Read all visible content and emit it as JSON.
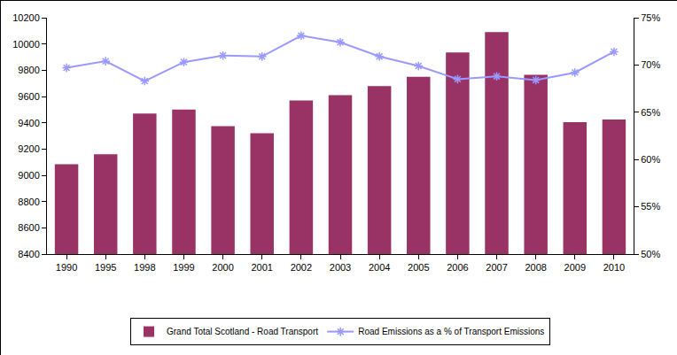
{
  "chart_data": {
    "type": "bar",
    "categories": [
      "1990",
      "1995",
      "1998",
      "1999",
      "2000",
      "2001",
      "2002",
      "2003",
      "2004",
      "2005",
      "2006",
      "2007",
      "2008",
      "2009",
      "2010"
    ],
    "series": [
      {
        "name": "Grand Total Scotland - Road Transport",
        "type": "bar",
        "color": "#993366",
        "values": [
          9085,
          9160,
          9470,
          9500,
          9375,
          9320,
          9570,
          9610,
          9680,
          9750,
          9935,
          10090,
          9765,
          9405,
          9425
        ]
      },
      {
        "name": "Road Emissions as a % of Transport Emissions",
        "type": "line",
        "axis": "y2",
        "color": "#9999ff",
        "marker": "asterisk",
        "values": [
          69.7,
          70.4,
          68.3,
          70.3,
          71.0,
          70.9,
          73.1,
          72.4,
          70.9,
          69.9,
          68.5,
          68.8,
          68.4,
          69.2,
          71.4
        ]
      }
    ],
    "ylim": [
      8400,
      10200
    ],
    "yticks": [
      8400,
      8600,
      8800,
      9000,
      9200,
      9400,
      9600,
      9800,
      10000,
      10200
    ],
    "y2lim": [
      50,
      75
    ],
    "y2ticks": [
      {
        "value": 50,
        "label": "50%"
      },
      {
        "value": 55,
        "label": "55%"
      },
      {
        "value": 60,
        "label": "60%"
      },
      {
        "value": 65,
        "label": "65%"
      },
      {
        "value": 70,
        "label": "70%"
      },
      {
        "value": 75,
        "label": "75%"
      }
    ],
    "grid": false,
    "legend": "bottom"
  }
}
